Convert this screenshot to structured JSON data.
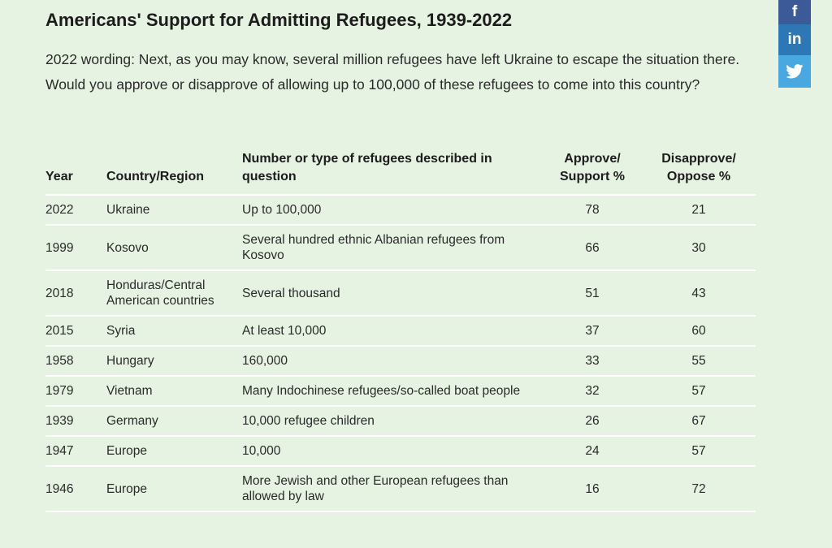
{
  "title": "Americans' Support for Admitting Refugees, 1939-2022",
  "subtitle": "2022 wording: Next, as you may know, several million refugees have left Ukraine to escape the situation there. Would you approve or disapprove of allowing up to 100,000 of these refugees to come into this country?",
  "social": {
    "facebook": "f",
    "linkedin": "in",
    "twitter_icon": "twitter-bird-icon"
  },
  "table": {
    "headers": {
      "year": "Year",
      "country": "Country/Region",
      "description": "Number or type of refugees described in question",
      "approve": "Approve/ Support %",
      "disapprove": "Disapprove/ Oppose %"
    },
    "rows": [
      {
        "year": "2022",
        "country": "Ukraine",
        "description": "Up to 100,000",
        "approve": "78",
        "disapprove": "21"
      },
      {
        "year": "1999",
        "country": "Kosovo",
        "description": "Several hundred ethnic Albanian refugees from Kosovo",
        "approve": "66",
        "disapprove": "30"
      },
      {
        "year": "2018",
        "country": "Honduras/Central American countries",
        "description": "Several thousand",
        "approve": "51",
        "disapprove": "43"
      },
      {
        "year": "2015",
        "country": "Syria",
        "description": "At least 10,000",
        "approve": "37",
        "disapprove": "60"
      },
      {
        "year": "1958",
        "country": "Hungary",
        "description": "160,000",
        "approve": "33",
        "disapprove": "55"
      },
      {
        "year": "1979",
        "country": "Vietnam",
        "description": "Many Indochinese refugees/so-called boat people",
        "approve": "32",
        "disapprove": "57"
      },
      {
        "year": "1939",
        "country": "Germany",
        "description": "10,000 refugee children",
        "approve": "26",
        "disapprove": "67"
      },
      {
        "year": "1947",
        "country": "Europe",
        "description": "10,000",
        "approve": "24",
        "disapprove": "57"
      },
      {
        "year": "1946",
        "country": "Europe",
        "description": "More Jewish and other European refugees than allowed by law",
        "approve": "16",
        "disapprove": "72"
      }
    ]
  }
}
